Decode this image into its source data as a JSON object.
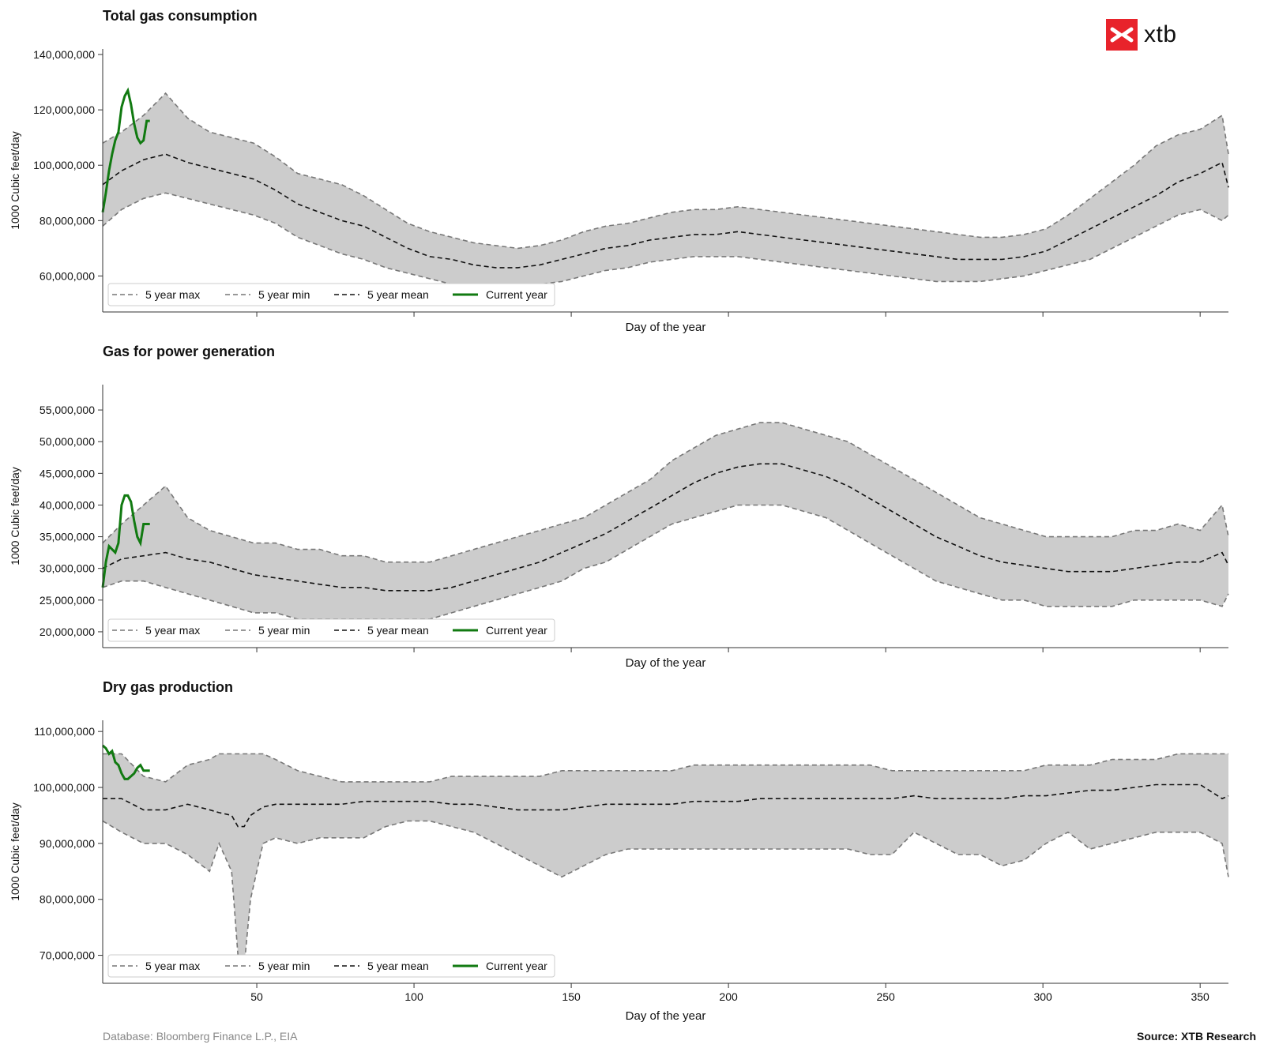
{
  "brand": {
    "name": "xtb",
    "color": "#e8232b"
  },
  "footer": {
    "database": "Database: Bloomberg Finance L.P., EIA",
    "source": "Source: XTB Research"
  },
  "style": {
    "band_color": "#cccccc",
    "minmax_color": "#777777",
    "mean_color": "#111111",
    "current_color": "#117a11"
  },
  "legend_labels": [
    "5 year max",
    "5 year min",
    "5 year mean",
    "Current year"
  ],
  "chart_data": [
    {
      "type": "area",
      "title": "Total gas consumption",
      "xlabel": "Day of the year",
      "ylabel": "1000 Cubic feet/day",
      "xlim": [
        1,
        359
      ],
      "ylim": [
        47000000,
        142000000
      ],
      "yticks": [
        60000000,
        80000000,
        100000000,
        120000000,
        140000000
      ],
      "ytick_labels": [
        "60,000,000",
        "80,000,000",
        "100,000,000",
        "120,000,000",
        "140,000,000"
      ],
      "xticks": [
        50,
        100,
        150,
        200,
        250,
        300,
        350
      ],
      "xtick_labels": [],
      "grid": false,
      "legend": "bottom-left",
      "x": [
        1,
        7,
        14,
        21,
        28,
        35,
        42,
        49,
        56,
        63,
        70,
        77,
        84,
        91,
        98,
        105,
        112,
        119,
        126,
        133,
        140,
        147,
        154,
        161,
        168,
        175,
        182,
        189,
        196,
        203,
        210,
        217,
        224,
        231,
        238,
        245,
        252,
        259,
        266,
        273,
        280,
        287,
        294,
        301,
        308,
        315,
        322,
        329,
        336,
        343,
        350,
        357,
        359
      ],
      "series": [
        {
          "name": "5 year max",
          "role": "max",
          "values": [
            108000000,
            112000000,
            118000000,
            126000000,
            117000000,
            112000000,
            110000000,
            108000000,
            103000000,
            97000000,
            95000000,
            93000000,
            89000000,
            84000000,
            79000000,
            76000000,
            74000000,
            72000000,
            71000000,
            70000000,
            71000000,
            73000000,
            76000000,
            78000000,
            79000000,
            81000000,
            83000000,
            84000000,
            84000000,
            85000000,
            84000000,
            83000000,
            82000000,
            81000000,
            80000000,
            79000000,
            78000000,
            77000000,
            76000000,
            75000000,
            74000000,
            74000000,
            75000000,
            77000000,
            82000000,
            88000000,
            94000000,
            100000000,
            107000000,
            111000000,
            113000000,
            118000000,
            104000000
          ]
        },
        {
          "name": "5 year min",
          "role": "min",
          "values": [
            78000000,
            84000000,
            88000000,
            90000000,
            88000000,
            86000000,
            84000000,
            82000000,
            79000000,
            74000000,
            71000000,
            68000000,
            66000000,
            63000000,
            61000000,
            59000000,
            57000000,
            55000000,
            55000000,
            56000000,
            57000000,
            58000000,
            60000000,
            62000000,
            63000000,
            65000000,
            66000000,
            67000000,
            67000000,
            67000000,
            66000000,
            65000000,
            64000000,
            63000000,
            62000000,
            61000000,
            60000000,
            59000000,
            58000000,
            58000000,
            58000000,
            59000000,
            60000000,
            62000000,
            64000000,
            66000000,
            70000000,
            74000000,
            78000000,
            82000000,
            84000000,
            80000000,
            82000000
          ]
        },
        {
          "name": "5 year mean",
          "role": "mean",
          "values": [
            93000000,
            98000000,
            102000000,
            104000000,
            101000000,
            99000000,
            97000000,
            95000000,
            91000000,
            86000000,
            83000000,
            80000000,
            78000000,
            74000000,
            70000000,
            67000000,
            66000000,
            64000000,
            63000000,
            63000000,
            64000000,
            66000000,
            68000000,
            70000000,
            71000000,
            73000000,
            74000000,
            75000000,
            75000000,
            76000000,
            75000000,
            74000000,
            73000000,
            72000000,
            71000000,
            70000000,
            69000000,
            68000000,
            67000000,
            66000000,
            66000000,
            66000000,
            67000000,
            69000000,
            73000000,
            77000000,
            81000000,
            85000000,
            89000000,
            94000000,
            97000000,
            101000000,
            92000000
          ]
        }
      ],
      "current_year": {
        "x": [
          1,
          2,
          3,
          4,
          5,
          6,
          7,
          8,
          9,
          10,
          11,
          12,
          13,
          14,
          15,
          16
        ],
        "values": [
          83000000,
          90000000,
          98000000,
          104000000,
          109000000,
          112000000,
          121000000,
          125000000,
          127000000,
          122000000,
          115000000,
          110000000,
          108000000,
          109000000,
          116000000,
          116000000
        ]
      }
    },
    {
      "type": "area",
      "title": "Gas for power generation",
      "xlabel": "Day of the year",
      "ylabel": "1000 Cubic feet/day",
      "xlim": [
        1,
        359
      ],
      "ylim": [
        17500000,
        59000000
      ],
      "yticks": [
        20000000,
        25000000,
        30000000,
        35000000,
        40000000,
        45000000,
        50000000,
        55000000
      ],
      "ytick_labels": [
        "20,000,000",
        "25,000,000",
        "30,000,000",
        "35,000,000",
        "40,000,000",
        "45,000,000",
        "50,000,000",
        "55,000,000"
      ],
      "xticks": [
        50,
        100,
        150,
        200,
        250,
        300,
        350
      ],
      "xtick_labels": [],
      "grid": false,
      "legend": "bottom-left",
      "x": [
        1,
        7,
        14,
        21,
        28,
        35,
        42,
        49,
        56,
        63,
        70,
        77,
        84,
        91,
        98,
        105,
        112,
        119,
        126,
        133,
        140,
        147,
        154,
        161,
        168,
        175,
        182,
        189,
        196,
        203,
        210,
        217,
        224,
        231,
        238,
        245,
        252,
        259,
        266,
        273,
        280,
        287,
        294,
        301,
        308,
        315,
        322,
        329,
        336,
        343,
        350,
        357,
        359
      ],
      "series": [
        {
          "name": "5 year max",
          "role": "max",
          "values": [
            34000000,
            37000000,
            40000000,
            43000000,
            38000000,
            36000000,
            35000000,
            34000000,
            34000000,
            33000000,
            33000000,
            32000000,
            32000000,
            31000000,
            31000000,
            31000000,
            32000000,
            33000000,
            34000000,
            35000000,
            36000000,
            37000000,
            38000000,
            40000000,
            42000000,
            44000000,
            47000000,
            49000000,
            51000000,
            52000000,
            53000000,
            53000000,
            52000000,
            51000000,
            50000000,
            48000000,
            46000000,
            44000000,
            42000000,
            40000000,
            38000000,
            37000000,
            36000000,
            35000000,
            35000000,
            35000000,
            35000000,
            36000000,
            36000000,
            37000000,
            36000000,
            40000000,
            35000000
          ]
        },
        {
          "name": "5 year min",
          "role": "min",
          "values": [
            27000000,
            28000000,
            28000000,
            27000000,
            26000000,
            25000000,
            24000000,
            23000000,
            23000000,
            22000000,
            22000000,
            22000000,
            22000000,
            22000000,
            22000000,
            22000000,
            23000000,
            24000000,
            25000000,
            26000000,
            27000000,
            28000000,
            30000000,
            31000000,
            33000000,
            35000000,
            37000000,
            38000000,
            39000000,
            40000000,
            40000000,
            40000000,
            39000000,
            38000000,
            36000000,
            34000000,
            32000000,
            30000000,
            28000000,
            27000000,
            26000000,
            25000000,
            25000000,
            24000000,
            24000000,
            24000000,
            24000000,
            25000000,
            25000000,
            25000000,
            25000000,
            24000000,
            26000000
          ]
        },
        {
          "name": "5 year mean",
          "role": "mean",
          "values": [
            30000000,
            31500000,
            32000000,
            32500000,
            31500000,
            31000000,
            30000000,
            29000000,
            28500000,
            28000000,
            27500000,
            27000000,
            27000000,
            26500000,
            26500000,
            26500000,
            27000000,
            28000000,
            29000000,
            30000000,
            31000000,
            32500000,
            34000000,
            35500000,
            37500000,
            39500000,
            41500000,
            43500000,
            45000000,
            46000000,
            46500000,
            46500000,
            45500000,
            44500000,
            43000000,
            41000000,
            39000000,
            37000000,
            35000000,
            33500000,
            32000000,
            31000000,
            30500000,
            30000000,
            29500000,
            29500000,
            29500000,
            30000000,
            30500000,
            31000000,
            31000000,
            32500000,
            30500000
          ]
        }
      ],
      "current_year": {
        "x": [
          1,
          2,
          3,
          4,
          5,
          6,
          7,
          8,
          9,
          10,
          11,
          12,
          13,
          14,
          15,
          16
        ],
        "values": [
          27000000,
          31000000,
          33500000,
          33000000,
          32500000,
          34000000,
          40000000,
          41500000,
          41500000,
          40500000,
          37500000,
          35000000,
          34000000,
          37000000,
          37000000,
          37000000
        ]
      }
    },
    {
      "type": "area",
      "title": "Dry gas production",
      "xlabel": "Day of the year",
      "ylabel": "1000 Cubic feet/day",
      "xlim": [
        1,
        359
      ],
      "ylim": [
        65000000,
        112000000
      ],
      "yticks": [
        70000000,
        80000000,
        90000000,
        100000000,
        110000000
      ],
      "ytick_labels": [
        "70,000,000",
        "80,000,000",
        "90,000,000",
        "100,000,000",
        "110,000,000"
      ],
      "xticks": [
        50,
        100,
        150,
        200,
        250,
        300,
        350
      ],
      "xtick_labels": [
        "50",
        "100",
        "150",
        "200",
        "250",
        "300",
        "350"
      ],
      "grid": false,
      "legend": "bottom-left",
      "x": [
        1,
        7,
        14,
        21,
        28,
        35,
        38,
        42,
        44,
        46,
        48,
        52,
        56,
        63,
        70,
        77,
        84,
        91,
        98,
        105,
        112,
        119,
        126,
        133,
        140,
        147,
        154,
        161,
        168,
        175,
        182,
        189,
        196,
        203,
        210,
        217,
        224,
        231,
        238,
        245,
        252,
        259,
        266,
        273,
        280,
        287,
        294,
        301,
        308,
        315,
        322,
        329,
        336,
        343,
        350,
        357,
        359
      ],
      "series": [
        {
          "name": "5 year max",
          "role": "max",
          "values": [
            106000000,
            106000000,
            102000000,
            101000000,
            104000000,
            105000000,
            106000000,
            106000000,
            106000000,
            106000000,
            106000000,
            106000000,
            105000000,
            103000000,
            102000000,
            101000000,
            101000000,
            101000000,
            101000000,
            101000000,
            102000000,
            102000000,
            102000000,
            102000000,
            102000000,
            103000000,
            103000000,
            103000000,
            103000000,
            103000000,
            103000000,
            104000000,
            104000000,
            104000000,
            104000000,
            104000000,
            104000000,
            104000000,
            104000000,
            104000000,
            103000000,
            103000000,
            103000000,
            103000000,
            103000000,
            103000000,
            103000000,
            104000000,
            104000000,
            104000000,
            105000000,
            105000000,
            105000000,
            106000000,
            106000000,
            106000000,
            106000000
          ]
        },
        {
          "name": "5 year min",
          "role": "min",
          "values": [
            94000000,
            92000000,
            90000000,
            90000000,
            88000000,
            85000000,
            90000000,
            85000000,
            70000000,
            68000000,
            80000000,
            90000000,
            91000000,
            90000000,
            91000000,
            91000000,
            91000000,
            93000000,
            94000000,
            94000000,
            93000000,
            92000000,
            90000000,
            88000000,
            86000000,
            84000000,
            86000000,
            88000000,
            89000000,
            89000000,
            89000000,
            89000000,
            89000000,
            89000000,
            89000000,
            89000000,
            89000000,
            89000000,
            89000000,
            88000000,
            88000000,
            92000000,
            90000000,
            88000000,
            88000000,
            86000000,
            87000000,
            90000000,
            92000000,
            89000000,
            90000000,
            91000000,
            92000000,
            92000000,
            92000000,
            90000000,
            84000000
          ]
        },
        {
          "name": "5 year mean",
          "role": "mean",
          "values": [
            98000000,
            98000000,
            96000000,
            96000000,
            97000000,
            96000000,
            95500000,
            95000000,
            93000000,
            93000000,
            95000000,
            96500000,
            97000000,
            97000000,
            97000000,
            97000000,
            97500000,
            97500000,
            97500000,
            97500000,
            97000000,
            97000000,
            96500000,
            96000000,
            96000000,
            96000000,
            96500000,
            97000000,
            97000000,
            97000000,
            97000000,
            97500000,
            97500000,
            97500000,
            98000000,
            98000000,
            98000000,
            98000000,
            98000000,
            98000000,
            98000000,
            98500000,
            98000000,
            98000000,
            98000000,
            98000000,
            98500000,
            98500000,
            99000000,
            99500000,
            99500000,
            100000000,
            100500000,
            100500000,
            100500000,
            98000000,
            98500000
          ]
        }
      ],
      "current_year": {
        "x": [
          1,
          2,
          3,
          4,
          5,
          6,
          7,
          8,
          9,
          10,
          11,
          12,
          13,
          14,
          15,
          16
        ],
        "values": [
          107500000,
          107000000,
          106000000,
          106500000,
          104500000,
          104000000,
          102500000,
          101500000,
          101500000,
          102000000,
          102500000,
          103500000,
          104000000,
          103000000,
          103000000,
          103000000
        ]
      }
    }
  ]
}
